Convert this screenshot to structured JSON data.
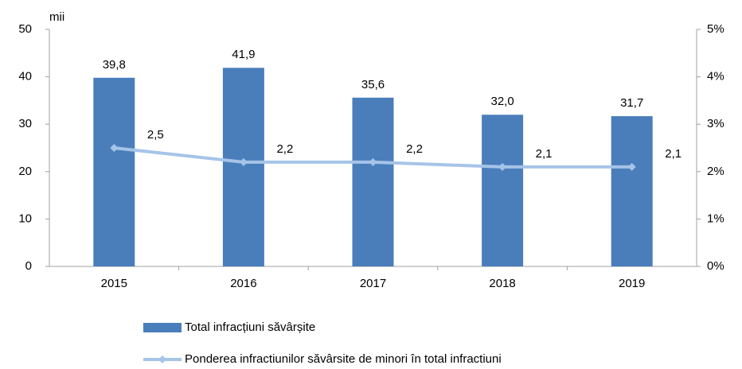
{
  "chart_data": {
    "type": "bar",
    "y_unit_label": "mii",
    "categories": [
      "2015",
      "2016",
      "2017",
      "2018",
      "2019"
    ],
    "series": [
      {
        "name": "Total infracțiuni săvârșite",
        "type": "bar",
        "color": "#4a7ebb",
        "values": [
          39.8,
          41.9,
          35.6,
          32.0,
          31.7
        ],
        "value_labels": [
          "39,8",
          "41,9",
          "35,6",
          "32,0",
          "31,7"
        ]
      },
      {
        "name": "Ponderea infractiunilor săvârsite de minori în total infractiuni",
        "type": "line",
        "axis": "y2",
        "color": "#a6c4e8",
        "values": [
          2.5,
          2.2,
          2.2,
          2.1,
          2.1
        ],
        "value_labels": [
          "2,5",
          "2,2",
          "2,2",
          "2,1",
          "2,1"
        ]
      }
    ],
    "ylim": [
      0,
      50
    ],
    "yticks": [
      0,
      10,
      20,
      30,
      40,
      50
    ],
    "y2lim": [
      0,
      5
    ],
    "y2ticks": [
      {
        "value": 0,
        "label": "0%"
      },
      {
        "value": 1,
        "label": "1%"
      },
      {
        "value": 2,
        "label": "2%"
      },
      {
        "value": 3,
        "label": "3%"
      },
      {
        "value": 4,
        "label": "4%"
      },
      {
        "value": 5,
        "label": "5%"
      }
    ],
    "legend": "bottom"
  }
}
